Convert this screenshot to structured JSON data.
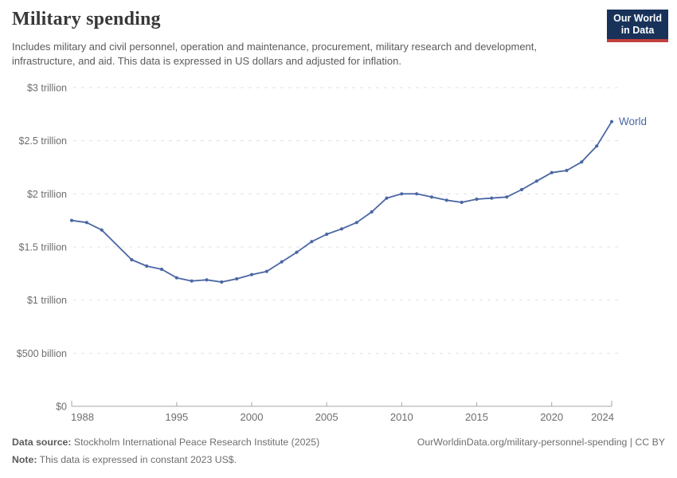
{
  "header": {
    "title": "Military spending",
    "subtitle": "Includes military and civil personnel, operation and maintenance, procurement, military research and development, infrastructure, and aid. This data is expressed in US dollars and adjusted for inflation.",
    "logo": {
      "line1": "Our World",
      "line2": "in Data",
      "bg": "#18325a",
      "accent": "#c1403d"
    }
  },
  "chart_data": {
    "type": "line",
    "title": "Military spending",
    "units": "US dollars, constant 2023 prices",
    "xlim": [
      1988,
      2024
    ],
    "ylim": [
      0,
      3
    ],
    "grid": "dashed horizontal",
    "legend_position": "end-of-line label",
    "missing_years": [
      1991
    ],
    "x_ticks": [
      1988,
      1995,
      2000,
      2005,
      2010,
      2015,
      2020,
      2024
    ],
    "y_ticks": [
      {
        "value": 0,
        "label": "$0"
      },
      {
        "value": 0.5,
        "label": "$500 billion"
      },
      {
        "value": 1,
        "label": "$1 trillion"
      },
      {
        "value": 1.5,
        "label": "$1.5 trillion"
      },
      {
        "value": 2,
        "label": "$2 trillion"
      },
      {
        "value": 2.5,
        "label": "$2.5 trillion"
      },
      {
        "value": 3,
        "label": "$3 trillion"
      }
    ],
    "series": [
      {
        "name": "World",
        "color": "#4a67a4",
        "unit": "trillion US$",
        "points": [
          [
            1988,
            1.75
          ],
          [
            1989,
            1.73
          ],
          [
            1990,
            1.66
          ],
          [
            1992,
            1.38
          ],
          [
            1993,
            1.32
          ],
          [
            1994,
            1.29
          ],
          [
            1995,
            1.21
          ],
          [
            1996,
            1.18
          ],
          [
            1997,
            1.19
          ],
          [
            1998,
            1.17
          ],
          [
            1999,
            1.2
          ],
          [
            2000,
            1.24
          ],
          [
            2001,
            1.27
          ],
          [
            2002,
            1.36
          ],
          [
            2003,
            1.45
          ],
          [
            2004,
            1.55
          ],
          [
            2005,
            1.62
          ],
          [
            2006,
            1.67
          ],
          [
            2007,
            1.73
          ],
          [
            2008,
            1.83
          ],
          [
            2009,
            1.96
          ],
          [
            2010,
            2.0
          ],
          [
            2011,
            2.0
          ],
          [
            2012,
            1.97
          ],
          [
            2013,
            1.94
          ],
          [
            2014,
            1.92
          ],
          [
            2015,
            1.95
          ],
          [
            2016,
            1.96
          ],
          [
            2017,
            1.97
          ],
          [
            2018,
            2.04
          ],
          [
            2019,
            2.12
          ],
          [
            2020,
            2.2
          ],
          [
            2021,
            2.22
          ],
          [
            2022,
            2.3
          ],
          [
            2023,
            2.45
          ],
          [
            2024,
            2.68
          ]
        ]
      }
    ]
  },
  "footer": {
    "source_label": "Data source:",
    "source_text": " Stockholm International Peace Research Institute (2025)",
    "note_label": "Note:",
    "note_text": " This data is expressed in constant 2023 US$.",
    "link": "OurWorldinData.org/military-personnel-spending | CC BY"
  }
}
